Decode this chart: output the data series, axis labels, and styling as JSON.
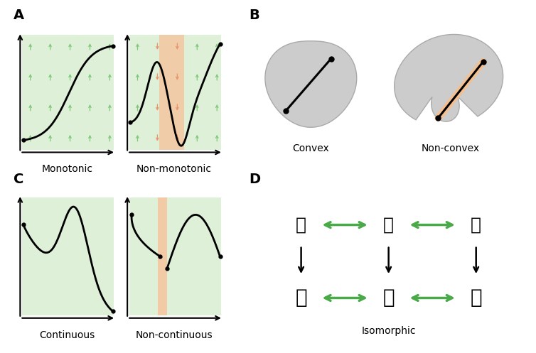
{
  "panel_labels": [
    "A",
    "B",
    "C",
    "D"
  ],
  "label_fontsize": 14,
  "label_fontweight": "bold",
  "green_bg": "#dff0d8",
  "orange_bg": "#f5c6a0",
  "arrow_green": "#80c87a",
  "arrow_orange": "#e8956a",
  "blob_fill": "#cccccc",
  "blob_edge": "#aaaaaa",
  "text_fontsize": 10,
  "caption_Monotonic": "Monotonic",
  "caption_NonMonotonic": "Non-monotonic",
  "caption_Convex": "Convex",
  "caption_NonConvex": "Non-convex",
  "caption_Continuous": "Continuous",
  "caption_NonContinuous": "Non-continuous",
  "caption_Isomorphic": "Isomorphic",
  "green_arrow_color": "#4aaa4a"
}
